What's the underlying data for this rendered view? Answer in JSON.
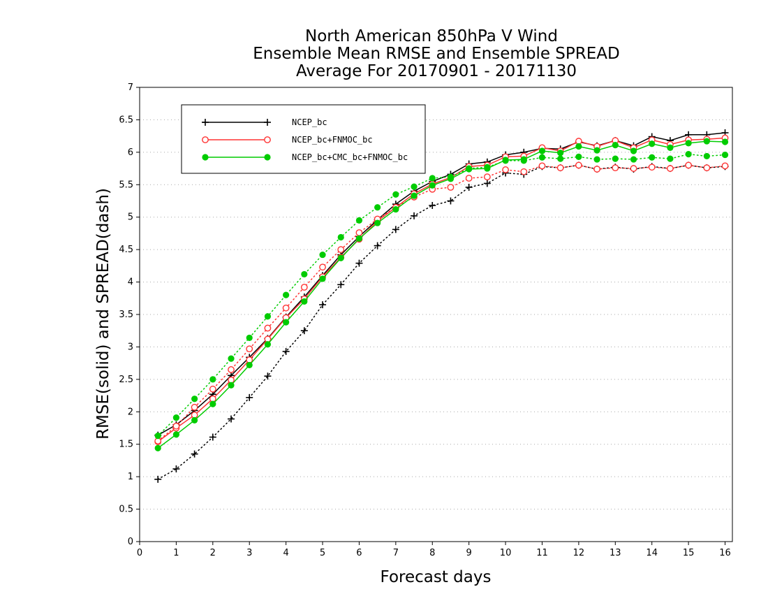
{
  "chart_data": {
    "type": "line",
    "title_lines": [
      "North American 850hPa V Wind",
      "Ensemble Mean RMSE and Ensemble SPREAD",
      "Average For 20170901 - 20171130"
    ],
    "xlabel": "Forecast days",
    "ylabel": "RMSE(solid) and SPREAD(dash)",
    "xlim": [
      0,
      16.2
    ],
    "ylim": [
      0,
      7
    ],
    "x_ticks": [
      "0",
      "1",
      "2",
      "3",
      "4",
      "5",
      "6",
      "7",
      "8",
      "9",
      "10",
      "11",
      "12",
      "13",
      "14",
      "15",
      "16"
    ],
    "y_ticks": [
      "0",
      "0.5",
      "1",
      "1.5",
      "2",
      "2.5",
      "3",
      "3.5",
      "4",
      "4.5",
      "5",
      "5.5",
      "6",
      "6.5",
      "7"
    ],
    "grid": true,
    "legend_position": "top-left",
    "x": [
      0.5,
      1,
      1.5,
      2,
      2.5,
      3,
      3.5,
      4,
      4.5,
      5,
      5.5,
      6,
      6.5,
      7,
      7.5,
      8,
      8.5,
      9,
      9.5,
      10,
      10.5,
      11,
      11.5,
      12,
      12.5,
      13,
      13.5,
      14,
      14.5,
      15,
      15.5,
      16
    ],
    "series": [
      {
        "name": "NCEP_bc",
        "color": "#000000",
        "marker": "plus",
        "rmse": [
          1.64,
          1.8,
          2.02,
          2.27,
          2.56,
          2.84,
          3.13,
          3.46,
          3.77,
          4.1,
          4.42,
          4.7,
          4.96,
          5.2,
          5.4,
          5.55,
          5.66,
          5.82,
          5.85,
          5.96,
          6.0,
          6.06,
          6.05,
          6.16,
          6.1,
          6.18,
          6.1,
          6.24,
          6.18,
          6.27,
          6.27,
          6.3
        ],
        "spread": [
          0.96,
          1.12,
          1.35,
          1.61,
          1.89,
          2.22,
          2.55,
          2.93,
          3.25,
          3.65,
          3.96,
          4.29,
          4.56,
          4.81,
          5.02,
          5.18,
          5.25,
          5.46,
          5.52,
          5.68,
          5.66,
          5.78,
          5.76,
          5.8,
          5.74,
          5.77,
          5.74,
          5.78,
          5.75,
          5.8,
          5.76,
          5.78
        ]
      },
      {
        "name": "NCEP_bc+FNMOC_bc",
        "color": "#ff3333",
        "marker": "open-circle",
        "rmse": [
          1.54,
          1.75,
          1.95,
          2.2,
          2.49,
          2.8,
          3.12,
          3.45,
          3.74,
          4.08,
          4.38,
          4.66,
          4.94,
          5.15,
          5.36,
          5.51,
          5.61,
          5.78,
          5.8,
          5.93,
          5.94,
          6.07,
          6.02,
          6.17,
          6.09,
          6.18,
          6.07,
          6.19,
          6.12,
          6.19,
          6.2,
          6.22
        ],
        "spread": [
          1.55,
          1.78,
          2.07,
          2.35,
          2.65,
          2.97,
          3.29,
          3.6,
          3.92,
          4.23,
          4.5,
          4.76,
          4.97,
          5.15,
          5.31,
          5.43,
          5.46,
          5.6,
          5.62,
          5.73,
          5.7,
          5.79,
          5.76,
          5.8,
          5.74,
          5.76,
          5.75,
          5.77,
          5.75,
          5.8,
          5.76,
          5.79
        ]
      },
      {
        "name": "NCEP_bc+CMC_bc+FNMOC_bc",
        "color": "#00cc00",
        "marker": "filled-circle",
        "rmse": [
          1.44,
          1.65,
          1.87,
          2.12,
          2.41,
          2.72,
          3.04,
          3.38,
          3.7,
          4.05,
          4.37,
          4.67,
          4.91,
          5.12,
          5.33,
          5.49,
          5.59,
          5.74,
          5.75,
          5.88,
          5.89,
          6.02,
          5.99,
          6.09,
          6.03,
          6.11,
          6.02,
          6.13,
          6.07,
          6.14,
          6.17,
          6.16
        ],
        "spread": [
          1.63,
          1.91,
          2.2,
          2.5,
          2.82,
          3.14,
          3.47,
          3.8,
          4.12,
          4.42,
          4.69,
          4.95,
          5.15,
          5.35,
          5.47,
          5.6,
          5.62,
          5.75,
          5.77,
          5.87,
          5.87,
          5.92,
          5.9,
          5.93,
          5.89,
          5.9,
          5.89,
          5.92,
          5.9,
          5.97,
          5.94,
          5.96
        ]
      }
    ]
  }
}
